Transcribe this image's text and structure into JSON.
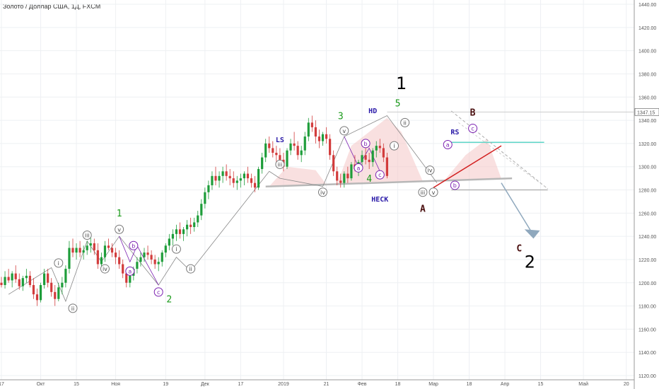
{
  "title": "Золото / Доллар США, 1Д, FXCM",
  "chart_data": {
    "type": "candlestick",
    "title": "Золото / Доллар США, 1Д, FXCM",
    "ylim": [
      1120,
      1440
    ],
    "y_ticks": [
      "1120.00",
      "1140.00",
      "1160.00",
      "1180.00",
      "1200.00",
      "1220.00",
      "1240.00",
      "1260.00",
      "1280.00",
      "1300.00",
      "1320.00",
      "1340.00",
      "1360.00",
      "1380.00",
      "1400.00",
      "1420.00",
      "1440.00"
    ],
    "y_tick_values": [
      1120,
      1140,
      1160,
      1180,
      1200,
      1220,
      1240,
      1260,
      1280,
      1300,
      1320,
      1340,
      1360,
      1380,
      1400,
      1420,
      1440
    ],
    "x_ticks": [
      "17",
      "Окт",
      "15",
      "Ноя",
      "19",
      "Дек",
      "17",
      "2019",
      "21",
      "Фев",
      "18",
      "Мар",
      "18",
      "Апр",
      "15",
      "Май",
      "20"
    ],
    "x_tick_index": [
      0,
      11,
      21,
      32,
      46,
      57,
      67,
      79,
      91,
      101,
      111,
      121,
      131,
      141,
      151,
      163,
      175
    ],
    "current_price": "1347.15",
    "current_price_value": 1347.15,
    "grid": true,
    "candles": [
      [
        1200,
        1205,
        1196,
        1198
      ],
      [
        1198,
        1210,
        1195,
        1205
      ],
      [
        1205,
        1212,
        1200,
        1202
      ],
      [
        1202,
        1210,
        1196,
        1208
      ],
      [
        1208,
        1215,
        1200,
        1203
      ],
      [
        1203,
        1208,
        1194,
        1197
      ],
      [
        1197,
        1206,
        1193,
        1204
      ],
      [
        1204,
        1212,
        1200,
        1206
      ],
      [
        1206,
        1210,
        1196,
        1198
      ],
      [
        1198,
        1204,
        1186,
        1190
      ],
      [
        1190,
        1195,
        1180,
        1185
      ],
      [
        1185,
        1200,
        1183,
        1198
      ],
      [
        1198,
        1212,
        1195,
        1208
      ],
      [
        1208,
        1212,
        1196,
        1200
      ],
      [
        1200,
        1204,
        1188,
        1192
      ],
      [
        1192,
        1198,
        1180,
        1186
      ],
      [
        1186,
        1200,
        1184,
        1196
      ],
      [
        1196,
        1205,
        1190,
        1200
      ],
      [
        1200,
        1215,
        1196,
        1212
      ],
      [
        1212,
        1236,
        1208,
        1230
      ],
      [
        1230,
        1238,
        1222,
        1226
      ],
      [
        1226,
        1234,
        1220,
        1230
      ],
      [
        1230,
        1236,
        1222,
        1226
      ],
      [
        1226,
        1232,
        1220,
        1228
      ],
      [
        1228,
        1236,
        1224,
        1232
      ],
      [
        1232,
        1240,
        1226,
        1234
      ],
      [
        1234,
        1238,
        1224,
        1228
      ],
      [
        1228,
        1234,
        1212,
        1216
      ],
      [
        1216,
        1226,
        1212,
        1222
      ],
      [
        1222,
        1236,
        1218,
        1232
      ],
      [
        1232,
        1238,
        1228,
        1230
      ],
      [
        1230,
        1234,
        1222,
        1226
      ],
      [
        1226,
        1230,
        1216,
        1222
      ],
      [
        1222,
        1228,
        1212,
        1216
      ],
      [
        1216,
        1220,
        1204,
        1208
      ],
      [
        1208,
        1212,
        1196,
        1200
      ],
      [
        1200,
        1208,
        1196,
        1206
      ],
      [
        1206,
        1214,
        1202,
        1212
      ],
      [
        1212,
        1222,
        1208,
        1218
      ],
      [
        1218,
        1226,
        1214,
        1222
      ],
      [
        1222,
        1230,
        1218,
        1226
      ],
      [
        1226,
        1232,
        1220,
        1224
      ],
      [
        1224,
        1228,
        1216,
        1220
      ],
      [
        1220,
        1224,
        1212,
        1216
      ],
      [
        1216,
        1222,
        1210,
        1218
      ],
      [
        1218,
        1228,
        1214,
        1226
      ],
      [
        1226,
        1234,
        1222,
        1232
      ],
      [
        1232,
        1242,
        1228,
        1238
      ],
      [
        1238,
        1246,
        1232,
        1242
      ],
      [
        1242,
        1250,
        1236,
        1246
      ],
      [
        1246,
        1252,
        1238,
        1242
      ],
      [
        1242,
        1248,
        1236,
        1246
      ],
      [
        1246,
        1254,
        1240,
        1250
      ],
      [
        1250,
        1256,
        1242,
        1248
      ],
      [
        1248,
        1256,
        1244,
        1252
      ],
      [
        1252,
        1262,
        1248,
        1258
      ],
      [
        1258,
        1272,
        1254,
        1268
      ],
      [
        1268,
        1282,
        1264,
        1278
      ],
      [
        1278,
        1288,
        1272,
        1284
      ],
      [
        1284,
        1296,
        1280,
        1292
      ],
      [
        1292,
        1300,
        1284,
        1288
      ],
      [
        1288,
        1296,
        1282,
        1292
      ],
      [
        1292,
        1300,
        1286,
        1296
      ],
      [
        1296,
        1302,
        1288,
        1292
      ],
      [
        1292,
        1298,
        1284,
        1290
      ],
      [
        1290,
        1296,
        1282,
        1286
      ],
      [
        1286,
        1292,
        1280,
        1288
      ],
      [
        1288,
        1294,
        1282,
        1290
      ],
      [
        1290,
        1296,
        1284,
        1294
      ],
      [
        1294,
        1300,
        1286,
        1290
      ],
      [
        1290,
        1294,
        1282,
        1286
      ],
      [
        1286,
        1292,
        1278,
        1282
      ],
      [
        1282,
        1300,
        1280,
        1298
      ],
      [
        1298,
        1312,
        1294,
        1308
      ],
      [
        1308,
        1324,
        1304,
        1320
      ],
      [
        1320,
        1326,
        1312,
        1316
      ],
      [
        1316,
        1322,
        1308,
        1312
      ],
      [
        1312,
        1318,
        1304,
        1310
      ],
      [
        1310,
        1316,
        1302,
        1306
      ],
      [
        1306,
        1312,
        1296,
        1300
      ],
      [
        1300,
        1316,
        1298,
        1314
      ],
      [
        1314,
        1324,
        1310,
        1320
      ],
      [
        1320,
        1330,
        1314,
        1318
      ],
      [
        1318,
        1322,
        1306,
        1310
      ],
      [
        1310,
        1318,
        1304,
        1314
      ],
      [
        1314,
        1330,
        1310,
        1326
      ],
      [
        1326,
        1342,
        1322,
        1338
      ],
      [
        1338,
        1344,
        1330,
        1334
      ],
      [
        1334,
        1340,
        1320,
        1326
      ],
      [
        1326,
        1332,
        1316,
        1322
      ],
      [
        1322,
        1330,
        1318,
        1328
      ],
      [
        1328,
        1334,
        1320,
        1324
      ],
      [
        1324,
        1328,
        1306,
        1310
      ],
      [
        1310,
        1314,
        1292,
        1296
      ],
      [
        1296,
        1300,
        1284,
        1288
      ],
      [
        1288,
        1294,
        1282,
        1286
      ],
      [
        1286,
        1296,
        1282,
        1294
      ],
      [
        1294,
        1300,
        1286,
        1290
      ],
      [
        1290,
        1304,
        1288,
        1302
      ],
      [
        1302,
        1310,
        1296,
        1298
      ],
      [
        1298,
        1306,
        1292,
        1304
      ],
      [
        1304,
        1314,
        1300,
        1310
      ],
      [
        1310,
        1316,
        1302,
        1306
      ],
      [
        1306,
        1312,
        1298,
        1304
      ],
      [
        1304,
        1316,
        1300,
        1314
      ],
      [
        1314,
        1322,
        1308,
        1318
      ],
      [
        1318,
        1324,
        1312,
        1316
      ],
      [
        1316,
        1320,
        1304,
        1308
      ],
      [
        1308,
        1312,
        1290,
        1292
      ]
    ],
    "wave_labels": {
      "green": [
        "1",
        "2",
        "3",
        "4",
        "5"
      ],
      "blue": [
        "LS",
        "HD",
        "RS",
        "HECK"
      ],
      "dark": [
        "A",
        "B",
        "C"
      ],
      "big": [
        "1",
        "2"
      ],
      "roman_grey": [
        "i",
        "ii",
        "iii",
        "iv",
        "v",
        "i",
        "ii",
        "iii",
        "iv",
        "v",
        "i",
        "ii",
        "iii",
        "iv",
        "v"
      ],
      "letters_purple": [
        "a",
        "b",
        "c",
        "a",
        "b",
        "c",
        "a",
        "b",
        "c"
      ]
    }
  }
}
